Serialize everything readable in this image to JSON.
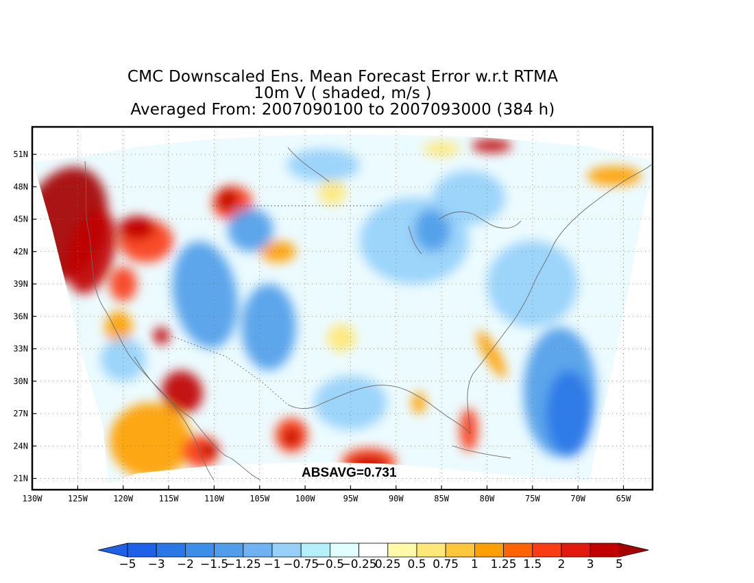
{
  "title": {
    "line1": "CMC Downscaled Ens. Mean Forecast Error w.r.t RTMA",
    "line2": "10m V ( shaded, m/s )",
    "line3": "Averaged From: 2007090100 to 2007093000 (384 h)"
  },
  "map": {
    "lon_ticks": [
      "130W",
      "125W",
      "120W",
      "115W",
      "110W",
      "105W",
      "100W",
      "95W",
      "90W",
      "85W",
      "80W",
      "75W",
      "70W",
      "65W"
    ],
    "lat_ticks": [
      "51N",
      "48N",
      "45N",
      "42N",
      "39N",
      "36N",
      "33N",
      "30N",
      "27N",
      "24N",
      "21N"
    ],
    "grid": true,
    "grid_style": "dotted",
    "annotation": "ABSAVG=0.731"
  },
  "colorbar": {
    "labels": [
      "−5",
      "−3",
      "−2",
      "−1.5",
      "−1.25",
      "−1",
      "−0.75",
      "−0.5",
      "−0.25",
      "0.25",
      "0.5",
      "0.75",
      "1",
      "1.25",
      "1.5",
      "2",
      "3",
      "5"
    ],
    "colors": [
      "#1e60e6",
      "#2a78e8",
      "#3c8ee9",
      "#509ee9",
      "#6eb2f2",
      "#96d0fa",
      "#b4f0fa",
      "#e2ffff",
      "#ffffff",
      "#fffaaa",
      "#ffe878",
      "#ffc83c",
      "#ffa000",
      "#ff6400",
      "#fa3c14",
      "#e11a0e",
      "#c00000",
      "#a50000"
    ]
  },
  "field": {
    "regions": [
      {
        "kind": "pos",
        "level": 5,
        "lon": -126.5,
        "lat": 44.5,
        "rx": 4.5,
        "ry": 5.5,
        "rot": 20
      },
      {
        "kind": "pos",
        "level": 4,
        "lon": -123.5,
        "lat": 42,
        "rx": 2.5,
        "ry": 4,
        "rot": 15
      },
      {
        "kind": "pos",
        "level": 3,
        "lon": -117.5,
        "lat": 43,
        "rx": 3,
        "ry": 2
      },
      {
        "kind": "pos",
        "level": 4,
        "lon": -118.5,
        "lat": 44.2,
        "rx": 2.0,
        "ry": 1.1
      },
      {
        "kind": "pos",
        "level": 3,
        "lon": -108,
        "lat": 46.5,
        "rx": 2.2,
        "ry": 1.6
      },
      {
        "kind": "pos",
        "level": 4,
        "lon": -108.5,
        "lat": 46.8,
        "rx": 1.1,
        "ry": 1.0
      },
      {
        "kind": "pos",
        "level": 3,
        "lon": -120,
        "lat": 39,
        "rx": 1.5,
        "ry": 1.6
      },
      {
        "kind": "pos",
        "level": 2,
        "lon": -120.5,
        "lat": 35,
        "rx": 1.5,
        "ry": 1.5
      },
      {
        "kind": "pos",
        "level": 4,
        "lon": -115.8,
        "lat": 34.2,
        "rx": 0.9,
        "ry": 0.8
      },
      {
        "kind": "pos",
        "level": 4,
        "lon": -113.5,
        "lat": 29,
        "rx": 2.2,
        "ry": 2.0,
        "rot": -30
      },
      {
        "kind": "pos",
        "level": 2,
        "lon": -117,
        "lat": 24.5,
        "rx": 4.5,
        "ry": 3.5
      },
      {
        "kind": "pos",
        "level": 3,
        "lon": -111.5,
        "lat": 23.5,
        "rx": 2.0,
        "ry": 1.5
      },
      {
        "kind": "pos",
        "level": 4,
        "lon": -110.5,
        "lat": 23.6,
        "rx": 1.0,
        "ry": 0.7
      },
      {
        "kind": "pos",
        "level": 3,
        "lon": -101.5,
        "lat": 25,
        "rx": 1.8,
        "ry": 1.6
      },
      {
        "kind": "pos",
        "level": 4,
        "lon": -101.5,
        "lat": 24.8,
        "rx": 0.9,
        "ry": 0.8
      },
      {
        "kind": "pos",
        "level": 3,
        "lon": -93,
        "lat": 22.5,
        "rx": 3,
        "ry": 1.3
      },
      {
        "kind": "pos",
        "level": 4,
        "lon": -93,
        "lat": 22.3,
        "rx": 2.0,
        "ry": 0.7
      },
      {
        "kind": "pos",
        "level": 4,
        "lon": -79.5,
        "lat": 51.8,
        "rx": 2.2,
        "ry": 0.6
      },
      {
        "kind": "pos",
        "level": 2,
        "lon": -66,
        "lat": 49,
        "rx": 3,
        "ry": 0.9
      },
      {
        "kind": "pos",
        "level": 3,
        "lon": -82,
        "lat": 25.5,
        "rx": 1.0,
        "ry": 2.0
      },
      {
        "kind": "pos",
        "level": 2,
        "lon": -79.5,
        "lat": 32.5,
        "rx": 0.8,
        "ry": 2.5,
        "rot": -30
      },
      {
        "kind": "pos",
        "level": 2,
        "lon": -103,
        "lat": 42,
        "rx": 2.0,
        "ry": 1.0
      },
      {
        "kind": "pos",
        "level": 1,
        "lon": -97,
        "lat": 47.5,
        "rx": 1.5,
        "ry": 1.2
      },
      {
        "kind": "pos",
        "level": 1,
        "lon": -85,
        "lat": 51.5,
        "rx": 2.0,
        "ry": 0.7
      },
      {
        "kind": "pos",
        "level": 1,
        "lon": -96,
        "lat": 34,
        "rx": 1.6,
        "ry": 1.3
      },
      {
        "kind": "pos",
        "level": 2,
        "lon": -87.5,
        "lat": 28,
        "rx": 0.8,
        "ry": 1.0
      },
      {
        "kind": "neg",
        "level": 2,
        "lon": -111,
        "lat": 38,
        "rx": 3.5,
        "ry": 5,
        "rot": -10
      },
      {
        "kind": "neg",
        "level": 2,
        "lon": -104,
        "lat": 35,
        "rx": 3,
        "ry": 4
      },
      {
        "kind": "neg",
        "level": 2,
        "lon": -106,
        "lat": 44,
        "rx": 2.5,
        "ry": 2.0
      },
      {
        "kind": "neg",
        "level": 1,
        "lon": -88,
        "lat": 43,
        "rx": 6,
        "ry": 4
      },
      {
        "kind": "neg",
        "level": 2,
        "lon": -86,
        "lat": 44,
        "rx": 2.0,
        "ry": 2.0
      },
      {
        "kind": "neg",
        "level": 1,
        "lon": -75,
        "lat": 39,
        "rx": 5,
        "ry": 4
      },
      {
        "kind": "neg",
        "level": 2,
        "lon": -72,
        "lat": 29,
        "rx": 4,
        "ry": 6
      },
      {
        "kind": "neg",
        "level": 3,
        "lon": -71,
        "lat": 27,
        "rx": 2.5,
        "ry": 4
      },
      {
        "kind": "neg",
        "level": 1,
        "lon": -95,
        "lat": 28,
        "rx": 4,
        "ry": 2.5
      },
      {
        "kind": "neg",
        "level": 1,
        "lon": -120,
        "lat": 32,
        "rx": 2.5,
        "ry": 2.0
      },
      {
        "kind": "neg",
        "level": 1,
        "lon": -82,
        "lat": 47,
        "rx": 4,
        "ry": 2.5
      },
      {
        "kind": "neg",
        "level": 1,
        "lon": -98,
        "lat": 50,
        "rx": 4,
        "ry": 1.5
      }
    ]
  }
}
